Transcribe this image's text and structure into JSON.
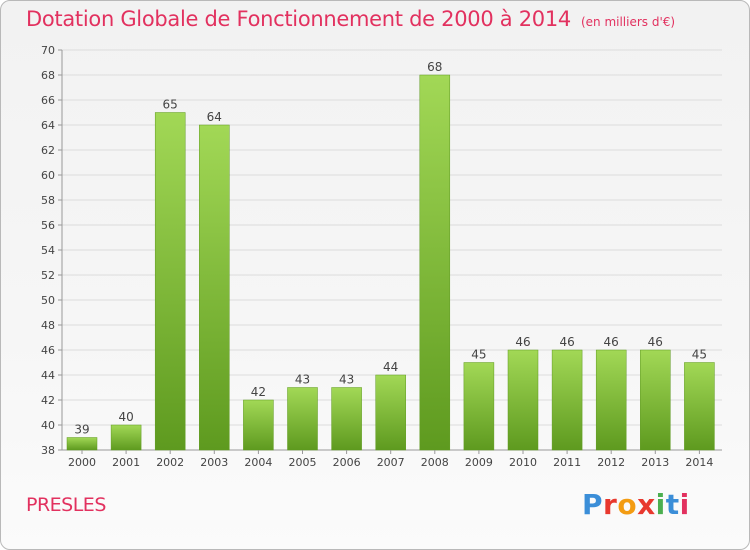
{
  "page": {
    "place_name": "PRESLES",
    "logo_text": "Proxiti",
    "logo_colors": [
      "#3b8ed8",
      "#e8382e",
      "#f39c12",
      "#e8382e",
      "#4caf50",
      "#3b8ed8",
      "#e2315f"
    ],
    "accent_color": "#e2315f"
  },
  "chart_data": {
    "type": "bar",
    "title": "Dotation Globale de Fonctionnement de 2000 à 2014",
    "subtitle": "(en milliers d'€)",
    "xlabel": "",
    "ylabel": "",
    "categories": [
      "2000",
      "2001",
      "2002",
      "2003",
      "2004",
      "2005",
      "2006",
      "2007",
      "2008",
      "2009",
      "2010",
      "2011",
      "2012",
      "2013",
      "2014"
    ],
    "values": [
      39,
      40,
      65,
      64,
      42,
      43,
      43,
      44,
      68,
      45,
      46,
      46,
      46,
      46,
      45
    ],
    "ylim": [
      38,
      70
    ],
    "ytick_step": 2,
    "grid": true,
    "bar_color": "#7dc23a",
    "bar_color_light": "#a2d856",
    "bar_color_dark": "#5e9a1f"
  }
}
